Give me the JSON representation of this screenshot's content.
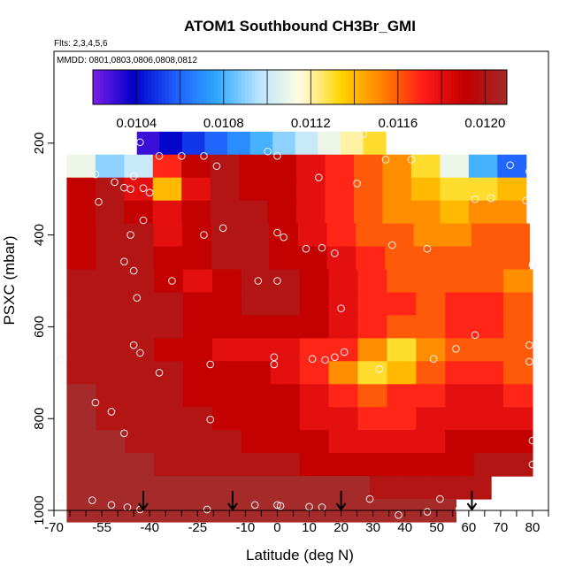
{
  "chart_data": {
    "type": "heatmap",
    "title": "ATOM1 Southbound CH3Br_GMI",
    "subtitle_flights": "Flts: 2,3,4,5,6",
    "subtitle_dates": "MMDD: 0801,0803,0806,0808,0812",
    "xlabel": "Latitude (deg N)",
    "ylabel": "PSXC (mbar)",
    "xlim": [
      -70,
      85
    ],
    "ylim": [
      1000,
      0
    ],
    "x_ticks_labeled": [
      "-70",
      "-55",
      "-40",
      "-25",
      "-10",
      "0",
      "10",
      "20",
      "30",
      "40",
      "50",
      "60",
      "70",
      "80"
    ],
    "x_tick_values": [
      -70,
      -55,
      -40,
      -25,
      -10,
      0,
      10,
      20,
      30,
      40,
      50,
      60,
      70,
      80
    ],
    "x_minor_ticks": [
      -65,
      -60,
      -50,
      -45,
      -35,
      -30,
      -20,
      -15,
      -5,
      5,
      15,
      25,
      35,
      45,
      55,
      65,
      75,
      85
    ],
    "y_ticks": [
      "200",
      "400",
      "600",
      "800",
      "1000"
    ],
    "y_tick_values": [
      200,
      400,
      600,
      800,
      1000
    ],
    "colorbar": {
      "min": 0.0102,
      "max": 0.0121,
      "tick_labels": [
        "0.0104",
        "0.0108",
        "0.0112",
        "0.0116",
        "0.0120"
      ],
      "tick_values": [
        0.0104,
        0.0108,
        0.0112,
        0.0116,
        0.012
      ],
      "boundaries": [
        0.0102,
        0.0104,
        0.0106,
        0.0108,
        0.011,
        0.0112,
        0.0114,
        0.0116,
        0.0118,
        0.012,
        0.0121
      ],
      "colors": [
        "#7b1fe8",
        "#0000c8",
        "#1f5fff",
        "#2fa8ff",
        "#b8e4ff",
        "#fffde0",
        "#ffd400",
        "#ff8000",
        "#ff1a1a",
        "#c00000",
        "#a52a2a"
      ]
    },
    "layers": [
      {
        "p": 200,
        "x0": -44,
        "x1": 34,
        "values": [
          0.0103,
          0.0104,
          0.0105,
          0.0106,
          0.0107,
          0.0108,
          0.0109,
          0.011,
          0.0111,
          0.0112,
          0.0113
        ]
      },
      {
        "p": 250,
        "x0": -66,
        "x1": 78,
        "values": [
          0.0111,
          0.0109,
          0.011,
          0.0117,
          0.0119,
          0.012,
          0.0119,
          0.0119,
          0.0118,
          0.0117,
          0.0116,
          0.0115,
          0.0113,
          0.0111,
          0.0108,
          0.0106
        ]
      },
      {
        "p": 300,
        "x0": -66,
        "x1": 78,
        "values": [
          0.0119,
          0.012,
          0.0118,
          0.0114,
          0.0118,
          0.012,
          0.0119,
          0.0119,
          0.0118,
          0.0117,
          0.0116,
          0.0115,
          0.0114,
          0.0113,
          0.0113,
          0.0114
        ]
      },
      {
        "p": 350,
        "x0": -66,
        "x1": 78,
        "values": [
          0.0119,
          0.012,
          0.0119,
          0.0118,
          0.0119,
          0.012,
          0.012,
          0.0119,
          0.0118,
          0.0117,
          0.0116,
          0.0115,
          0.0115,
          0.0114,
          0.0115,
          0.0115
        ]
      },
      {
        "p": 400,
        "x0": -66,
        "x1": 79,
        "values": [
          0.0119,
          0.012,
          0.012,
          0.0118,
          0.0119,
          0.012,
          0.012,
          0.0119,
          0.0118,
          0.0117,
          0.0116,
          0.0116,
          0.0115,
          0.0115,
          0.0116,
          0.0116
        ]
      },
      {
        "p": 450,
        "x0": -66,
        "x1": 79,
        "values": [
          0.0119,
          0.012,
          0.012,
          0.0119,
          0.0119,
          0.012,
          0.012,
          0.0119,
          0.0119,
          0.0118,
          0.0117,
          0.0116,
          0.0116,
          0.0116,
          0.0116,
          0.0116
        ]
      },
      {
        "p": 500,
        "x0": -66,
        "x1": 80,
        "values": [
          0.012,
          0.012,
          0.012,
          0.0119,
          0.0118,
          0.0119,
          0.012,
          0.012,
          0.0119,
          0.0118,
          0.0117,
          0.0116,
          0.0116,
          0.0116,
          0.0116,
          0.0115
        ]
      },
      {
        "p": 550,
        "x0": -66,
        "x1": 80,
        "values": [
          0.012,
          0.012,
          0.012,
          0.012,
          0.0119,
          0.0119,
          0.012,
          0.012,
          0.0119,
          0.0118,
          0.0117,
          0.0117,
          0.0116,
          0.0117,
          0.0117,
          0.0116
        ]
      },
      {
        "p": 600,
        "x0": -66,
        "x1": 80,
        "values": [
          0.012,
          0.012,
          0.012,
          0.012,
          0.0119,
          0.0119,
          0.0119,
          0.0119,
          0.0119,
          0.0118,
          0.0117,
          0.0116,
          0.0116,
          0.0117,
          0.0117,
          0.0116
        ]
      },
      {
        "p": 650,
        "x0": -66,
        "x1": 80,
        "values": [
          0.012,
          0.012,
          0.012,
          0.0119,
          0.0119,
          0.0118,
          0.0118,
          0.0118,
          0.0117,
          0.0117,
          0.0115,
          0.0113,
          0.0115,
          0.0116,
          0.0116,
          0.0116
        ]
      },
      {
        "p": 700,
        "x0": -66,
        "x1": 80,
        "values": [
          0.012,
          0.012,
          0.012,
          0.012,
          0.0119,
          0.0119,
          0.0119,
          0.0118,
          0.0117,
          0.0115,
          0.0113,
          0.0114,
          0.0116,
          0.0117,
          0.0117,
          0.0116
        ]
      },
      {
        "p": 750,
        "x0": -66,
        "x1": 80,
        "values": [
          0.0121,
          0.012,
          0.012,
          0.012,
          0.0119,
          0.0119,
          0.0119,
          0.0119,
          0.0118,
          0.0117,
          0.0116,
          0.0117,
          0.0117,
          0.0118,
          0.0118,
          0.0117
        ]
      },
      {
        "p": 800,
        "x0": -66,
        "x1": 80,
        "values": [
          0.0121,
          0.012,
          0.012,
          0.012,
          0.012,
          0.0119,
          0.0119,
          0.0119,
          0.0118,
          0.0118,
          0.0117,
          0.0117,
          0.0118,
          0.0118,
          0.0118,
          0.0118
        ]
      },
      {
        "p": 850,
        "x0": -66,
        "x1": 80,
        "values": [
          0.0121,
          0.0121,
          0.012,
          0.012,
          0.012,
          0.012,
          0.0119,
          0.0119,
          0.0119,
          0.0118,
          0.0118,
          0.0118,
          0.0118,
          0.0119,
          0.0119,
          0.0119
        ]
      },
      {
        "p": 900,
        "x0": -66,
        "x1": 80,
        "values": [
          0.0121,
          0.0121,
          0.0121,
          0.012,
          0.012,
          0.012,
          0.012,
          0.012,
          0.0119,
          0.0119,
          0.0119,
          0.0119,
          0.0119,
          0.0119,
          0.012,
          0.012
        ]
      },
      {
        "p": 950,
        "x0": -66,
        "x1": 67,
        "values": [
          0.0121,
          0.0121,
          0.0121,
          0.0121,
          0.0121,
          0.0121,
          0.0121,
          0.0121,
          0.0121,
          0.0121,
          0.012,
          0.012,
          0.012,
          0.012
        ]
      },
      {
        "p": 1000,
        "x0": -66,
        "x1": 56,
        "values": [
          0.0121,
          0.0121,
          0.0121,
          0.0121,
          0.0121,
          0.0121,
          0.0121,
          0.0121,
          0.0121,
          0.0121,
          0.0121,
          0.0121
        ]
      }
    ],
    "observation_points": [
      [
        -43,
        198
      ],
      [
        -37,
        228
      ],
      [
        -30,
        228
      ],
      [
        -23,
        228
      ],
      [
        -3,
        218
      ],
      [
        0,
        228
      ],
      [
        27,
        180
      ],
      [
        34,
        236
      ],
      [
        42,
        236
      ],
      [
        -60,
        262
      ],
      [
        -57,
        268
      ],
      [
        -51,
        285
      ],
      [
        -48,
        297
      ],
      [
        -56,
        328
      ],
      [
        -46,
        300
      ],
      [
        -19,
        250
      ],
      [
        -45,
        272
      ],
      [
        -42,
        298
      ],
      [
        -40,
        308
      ],
      [
        13,
        275
      ],
      [
        25,
        288
      ],
      [
        73,
        248
      ],
      [
        79,
        262
      ],
      [
        -42,
        368
      ],
      [
        -46,
        400
      ],
      [
        -48,
        458
      ],
      [
        -23,
        400
      ],
      [
        -17,
        385
      ],
      [
        0,
        395
      ],
      [
        2,
        405
      ],
      [
        9,
        430
      ],
      [
        14,
        428
      ],
      [
        18,
        440
      ],
      [
        36,
        422
      ],
      [
        47,
        430
      ],
      [
        62,
        322
      ],
      [
        67,
        320
      ],
      [
        78,
        325
      ],
      [
        -45,
        478
      ],
      [
        -44,
        537
      ],
      [
        -33,
        500
      ],
      [
        -6,
        500
      ],
      [
        0,
        500
      ],
      [
        20,
        560
      ],
      [
        80,
        465
      ],
      [
        -45,
        640
      ],
      [
        -43,
        657
      ],
      [
        -37,
        700
      ],
      [
        -21,
        682
      ],
      [
        -1,
        666
      ],
      [
        -1,
        682
      ],
      [
        11,
        670
      ],
      [
        15,
        672
      ],
      [
        18,
        666
      ],
      [
        21,
        655
      ],
      [
        32,
        692
      ],
      [
        49,
        670
      ],
      [
        56,
        648
      ],
      [
        62,
        618
      ],
      [
        79,
        640
      ],
      [
        79,
        676
      ],
      [
        -68,
        672
      ],
      [
        -57,
        765
      ],
      [
        -52,
        785
      ],
      [
        -48,
        832
      ],
      [
        -21,
        802
      ],
      [
        80,
        848
      ],
      [
        80,
        900
      ],
      [
        -68,
        972
      ],
      [
        -58,
        978
      ],
      [
        -52,
        988
      ],
      [
        -47,
        993
      ],
      [
        -43,
        998
      ],
      [
        -22,
        998
      ],
      [
        -7,
        988
      ],
      [
        0,
        988
      ],
      [
        1,
        990
      ],
      [
        10,
        992
      ],
      [
        14,
        993
      ],
      [
        29,
        975
      ],
      [
        38,
        1010
      ],
      [
        47,
        1003
      ],
      [
        51,
        975
      ],
      [
        57,
        998
      ]
    ],
    "arrows": [
      -42,
      -14,
      20,
      61
    ]
  }
}
